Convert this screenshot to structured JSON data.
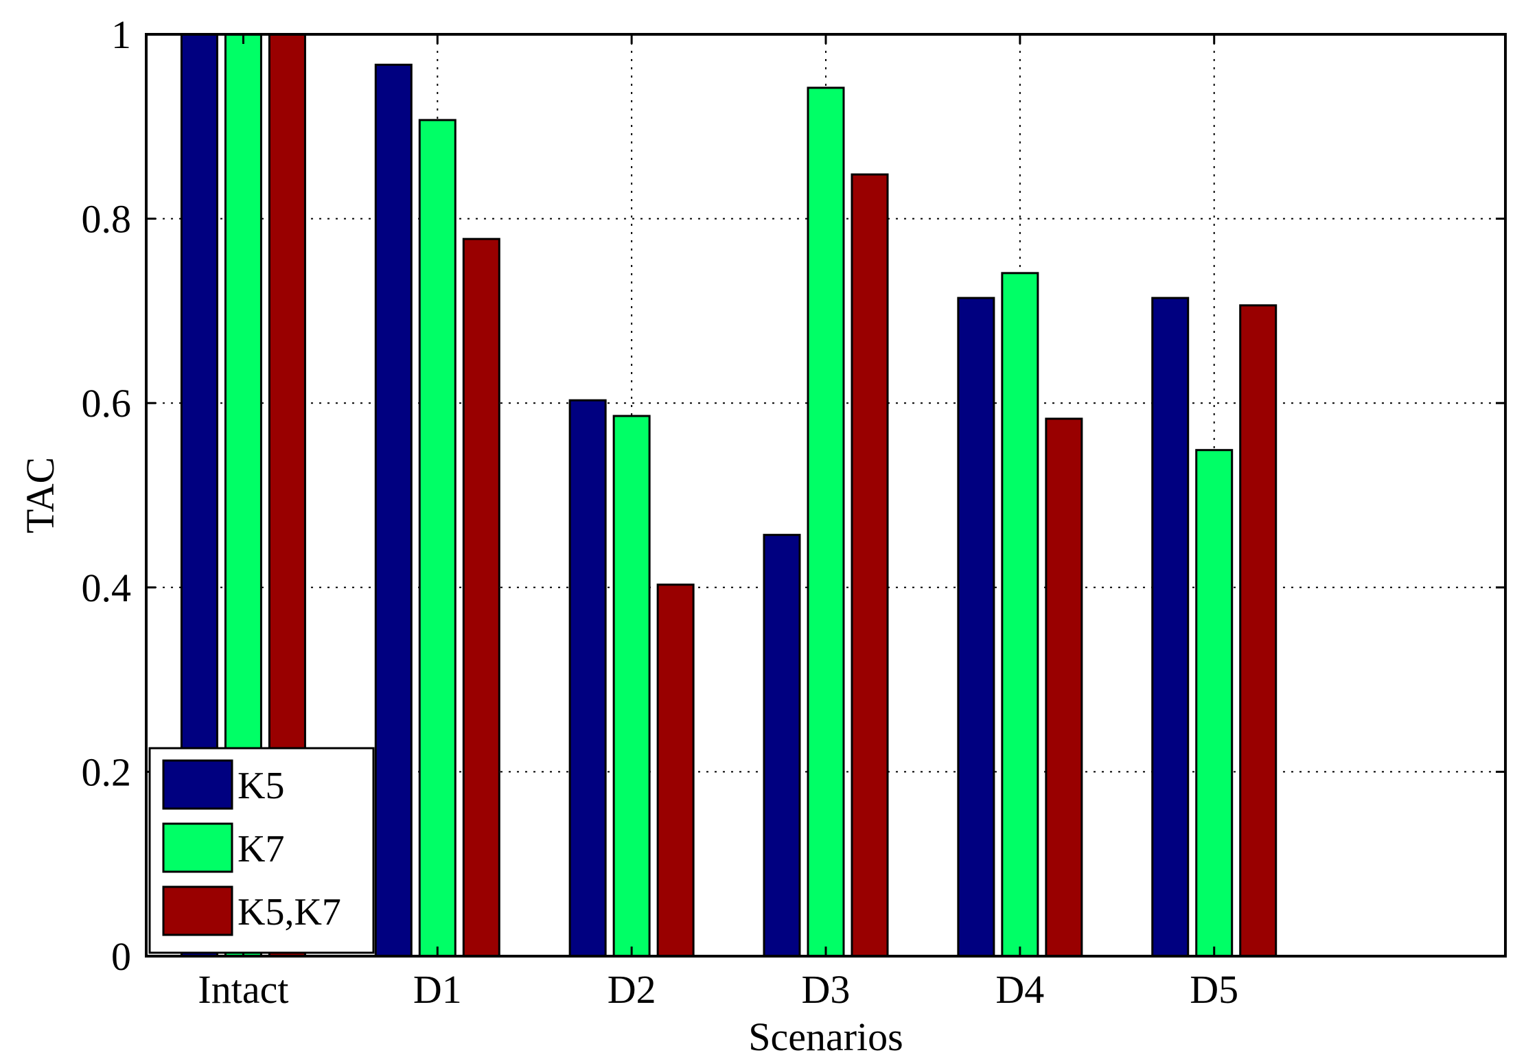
{
  "chart_data": {
    "type": "bar",
    "title": "",
    "xlabel": "Scenarios",
    "ylabel": "TAC",
    "categories": [
      "Intact",
      "D1",
      "D2",
      "D3",
      "D4",
      "D5"
    ],
    "series": [
      {
        "name": "K5",
        "color": "#000080",
        "values": [
          1.0,
          0.967,
          0.603,
          0.457,
          0.714,
          0.714
        ]
      },
      {
        "name": "K7",
        "color": "#00ff66",
        "values": [
          1.0,
          0.907,
          0.586,
          0.942,
          0.741,
          0.549
        ]
      },
      {
        "name": "K5,K7",
        "color": "#990000",
        "values": [
          1.0,
          0.778,
          0.403,
          0.848,
          0.583,
          0.706
        ]
      }
    ],
    "ylim": [
      0,
      1
    ],
    "yticks": [
      0,
      0.2,
      0.4,
      0.6,
      0.8,
      1
    ],
    "ytick_labels": [
      "0",
      "0.2",
      "0.4",
      "0.6",
      "0.8",
      "1"
    ],
    "xlim": [
      0.5,
      7.5
    ],
    "grid": true,
    "legend_position": "bottom-left"
  }
}
